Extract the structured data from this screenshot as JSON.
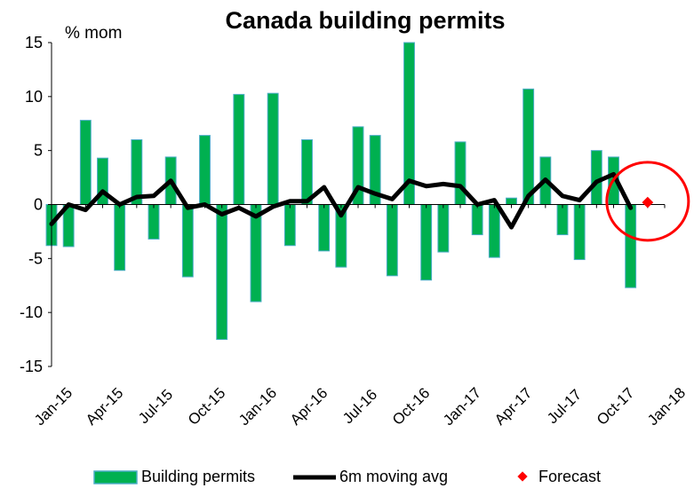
{
  "chart_data": {
    "type": "bar",
    "title": "Canada building permits",
    "unit_label": "% mom",
    "ylim": [
      -15,
      15
    ],
    "yticks": [
      15,
      10,
      5,
      0,
      -5,
      -10,
      -15
    ],
    "xtick_labels": [
      "Jan-15",
      "Apr-15",
      "Jul-15",
      "Oct-15",
      "Jan-16",
      "Apr-16",
      "Jul-16",
      "Oct-16",
      "Jan-17",
      "Apr-17",
      "Jul-17",
      "Oct-17",
      "Jan-18"
    ],
    "months": [
      "Jan-15",
      "Feb-15",
      "Mar-15",
      "Apr-15",
      "May-15",
      "Jun-15",
      "Jul-15",
      "Aug-15",
      "Sep-15",
      "Oct-15",
      "Nov-15",
      "Dec-15",
      "Jan-16",
      "Feb-16",
      "Mar-16",
      "Apr-16",
      "May-16",
      "Jun-16",
      "Jul-16",
      "Aug-16",
      "Sep-16",
      "Oct-16",
      "Nov-16",
      "Dec-16",
      "Jan-17",
      "Feb-17",
      "Mar-17",
      "Apr-17",
      "May-17",
      "Jun-17",
      "Jul-17",
      "Aug-17",
      "Sep-17",
      "Oct-17",
      "Nov-17",
      "Dec-17",
      "Jan-18"
    ],
    "series": [
      {
        "name": "Building permits",
        "kind": "bar",
        "color": "#00b050",
        "values": [
          -3.8,
          -3.9,
          7.8,
          4.3,
          -6.1,
          6.0,
          -3.2,
          4.4,
          -6.7,
          6.4,
          -12.5,
          10.2,
          -9.0,
          10.3,
          -3.8,
          6.0,
          -4.3,
          -5.8,
          7.2,
          6.4,
          -6.6,
          15.0,
          -7.0,
          -4.4,
          5.8,
          -2.8,
          -4.9,
          0.6,
          10.7,
          4.4,
          -2.8,
          -5.1,
          5.0,
          4.4,
          -7.7,
          null,
          null
        ]
      },
      {
        "name": "6m moving avg",
        "kind": "line",
        "color": "#000000",
        "values": [
          -1.8,
          0.0,
          -0.5,
          1.2,
          0.0,
          0.7,
          0.8,
          2.2,
          -0.3,
          0.0,
          -0.9,
          -0.3,
          -1.1,
          -0.2,
          0.3,
          0.3,
          1.6,
          -1.0,
          1.6,
          1.0,
          0.5,
          2.2,
          1.7,
          1.9,
          1.7,
          0.0,
          0.4,
          -2.1,
          0.8,
          2.3,
          0.8,
          0.4,
          2.1,
          2.8,
          -0.3,
          null,
          null
        ]
      },
      {
        "name": "Forecast",
        "kind": "marker",
        "color": "#ff0000",
        "values": [
          null,
          null,
          null,
          null,
          null,
          null,
          null,
          null,
          null,
          null,
          null,
          null,
          null,
          null,
          null,
          null,
          null,
          null,
          null,
          null,
          null,
          null,
          null,
          null,
          null,
          null,
          null,
          null,
          null,
          null,
          null,
          null,
          null,
          null,
          null,
          0.2,
          null
        ]
      }
    ],
    "highlight": {
      "shape": "circle",
      "color": "#ff0000",
      "around_month": "Dec-17"
    },
    "legend_position": "bottom"
  }
}
